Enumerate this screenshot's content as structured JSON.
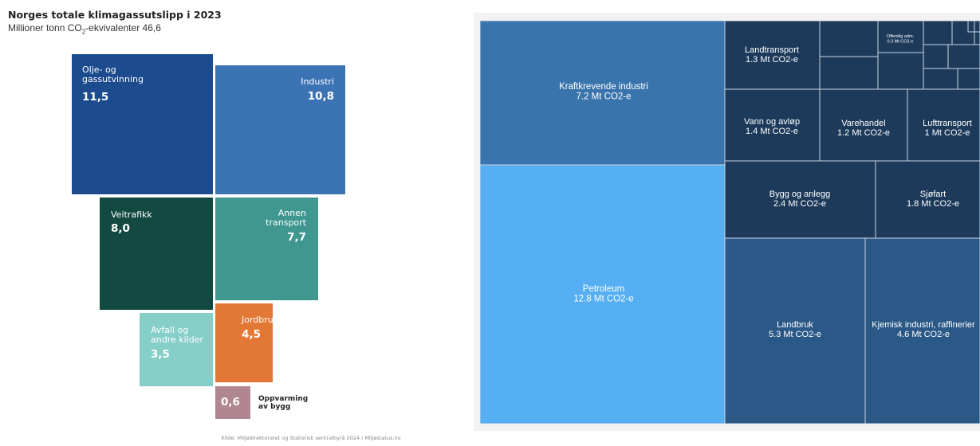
{
  "infographic": {
    "title": "Norges totale klimagassutslipp i 2023",
    "subtitle_pre": "Millioner tonn CO",
    "subtitle_sub": "2",
    "subtitle_post": "-ekvivalenter 46,6",
    "source": "Kilde: Miljødirektoratet og Statistisk sentralbyrå 2024 / Miljøstatus.no",
    "colors": {
      "olje": "#1c4b8e",
      "industri": "#3b73b5",
      "veitrafikk": "#124a41",
      "annen": "#3f978f",
      "avfall": "#86cec8",
      "jordbruk": "#e37836",
      "oppvarming": "#b08690"
    },
    "cells": {
      "olje": {
        "label": "Olje- og\ngassutvinning",
        "value": "11,5"
      },
      "industri": {
        "label": "Industri",
        "value": "10,8"
      },
      "veitrafikk": {
        "label": "Veitrafikk",
        "value": "8,0"
      },
      "annen": {
        "label": "Annen\ntransport",
        "value": "7,7"
      },
      "avfall": {
        "label": "Avfall og\nandre kilder",
        "value": "3,5"
      },
      "jordbruk": {
        "label": "Jordbruk",
        "value": "4,5"
      },
      "oppvarming": {
        "label": "Oppvarming\nav bygg",
        "value": "0,6"
      }
    }
  },
  "chart_data": [
    {
      "type": "bar",
      "title": "Norges totale klimagassutslipp i 2023",
      "subtitle": "Millioner tonn CO2-ekvivalenter 46,6",
      "categories": [
        "Olje- og gassutvinning",
        "Industri",
        "Veitrafikk",
        "Annen transport",
        "Avfall og andre kilder",
        "Jordbruk",
        "Oppvarming av bygg"
      ],
      "values": [
        11.5,
        10.8,
        8.0,
        7.7,
        3.5,
        4.5,
        0.6
      ]
    },
    {
      "type": "heatmap",
      "unit": "Mt CO2-e",
      "colors": {
        "light": "#56aff2",
        "mid": "#3a74ad",
        "dark": "#2a5887",
        "darker": "#1d3a5b",
        "border": "#c9d6e3"
      },
      "series": [
        {
          "name": "Petroleum",
          "value": 12.8,
          "label": "12.8 Mt CO2-e"
        },
        {
          "name": "Kraftkrevende industri",
          "value": 7.2,
          "label": "7.2 Mt CO2-e"
        },
        {
          "name": "Landbruk",
          "value": 5.3,
          "label": "5.3 Mt CO2-e"
        },
        {
          "name": "Kjemisk industri, raffinerier",
          "value": 4.6,
          "label": "4.6 Mt CO2-e"
        },
        {
          "name": "Bygg og anlegg",
          "value": 2.4,
          "label": "2.4 Mt CO2-e"
        },
        {
          "name": "Sjøfart",
          "value": 1.8,
          "label": "1.8 Mt CO2-e"
        },
        {
          "name": "Vann og avløp",
          "value": 1.4,
          "label": "1.4 Mt CO2-e"
        },
        {
          "name": "Landtransport",
          "value": 1.3,
          "label": "1.3 Mt CO2-e"
        },
        {
          "name": "Varehandel",
          "value": 1.2,
          "label": "1.2 Mt CO2-e"
        },
        {
          "name": "Lufttransport",
          "value": 1.0,
          "label": "1 Mt CO2-e"
        },
        {
          "name": "Offentlig adm.",
          "value": 0.3,
          "label": "0.3 Mt CO2-e"
        }
      ]
    }
  ]
}
